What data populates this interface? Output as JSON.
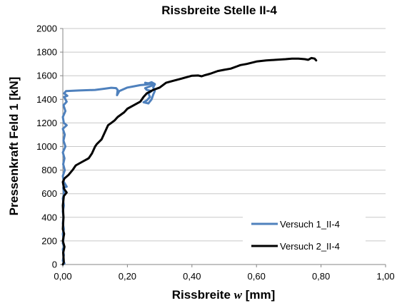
{
  "chart_data": {
    "type": "line",
    "title": "Rissbreite Stelle II-4",
    "xlabel_main": "Rissbreite ",
    "xlabel_italic": "w",
    "xlabel_unit": " [mm]",
    "ylabel": "Pressenkraft Feld 1 [kN]",
    "xlim": [
      0,
      1.0
    ],
    "ylim": [
      0,
      2000
    ],
    "x_ticks": [
      0,
      0.2,
      0.4,
      0.6,
      0.8,
      1.0
    ],
    "x_tick_labels": [
      "0,00",
      "0,20",
      "0,40",
      "0,60",
      "0,80",
      "1,00"
    ],
    "y_ticks": [
      0,
      200,
      400,
      600,
      800,
      1000,
      1200,
      1400,
      1600,
      1800,
      2000
    ],
    "y_tick_labels": [
      "0",
      "200",
      "400",
      "600",
      "800",
      "1000",
      "1200",
      "1400",
      "1600",
      "1800",
      "2000"
    ],
    "grid": "horizontal",
    "legend_position": "bottom-right",
    "series": [
      {
        "name": "Versuch 1_II-4",
        "color": "#4f81bd",
        "points": [
          [
            0.0,
            0
          ],
          [
            0.005,
            10
          ],
          [
            0.0,
            30
          ],
          [
            0.003,
            80
          ],
          [
            0.0,
            130
          ],
          [
            0.004,
            150
          ],
          [
            0.0,
            180
          ],
          [
            0.002,
            220
          ],
          [
            0.0,
            260
          ],
          [
            0.003,
            300
          ],
          [
            0.0,
            350
          ],
          [
            0.002,
            400
          ],
          [
            0.0,
            450
          ],
          [
            0.003,
            500
          ],
          [
            0.0,
            560
          ],
          [
            0.004,
            600
          ],
          [
            0.001,
            650
          ],
          [
            0.012,
            660
          ],
          [
            0.003,
            700
          ],
          [
            0.0,
            750
          ],
          [
            0.006,
            800
          ],
          [
            0.001,
            850
          ],
          [
            0.005,
            900
          ],
          [
            0.0,
            950
          ],
          [
            0.008,
            1000
          ],
          [
            0.002,
            1050
          ],
          [
            0.006,
            1100
          ],
          [
            0.0,
            1150
          ],
          [
            0.012,
            1180
          ],
          [
            0.003,
            1200
          ],
          [
            0.0,
            1250
          ],
          [
            0.008,
            1300
          ],
          [
            0.002,
            1350
          ],
          [
            0.012,
            1380
          ],
          [
            0.004,
            1420
          ],
          [
            0.014,
            1430
          ],
          [
            0.004,
            1450
          ],
          [
            0.01,
            1470
          ],
          [
            0.05,
            1475
          ],
          [
            0.1,
            1480
          ],
          [
            0.13,
            1490
          ],
          [
            0.15,
            1498
          ],
          [
            0.165,
            1495
          ],
          [
            0.17,
            1480
          ],
          [
            0.168,
            1435
          ],
          [
            0.175,
            1470
          ],
          [
            0.2,
            1500
          ],
          [
            0.22,
            1510
          ],
          [
            0.24,
            1520
          ],
          [
            0.26,
            1525
          ],
          [
            0.27,
            1530
          ],
          [
            0.28,
            1535
          ],
          [
            0.285,
            1525
          ],
          [
            0.27,
            1510
          ],
          [
            0.255,
            1495
          ],
          [
            0.26,
            1480
          ],
          [
            0.275,
            1470
          ],
          [
            0.265,
            1450
          ],
          [
            0.27,
            1420
          ],
          [
            0.26,
            1390
          ],
          [
            0.25,
            1375
          ],
          [
            0.265,
            1365
          ],
          [
            0.275,
            1400
          ],
          [
            0.28,
            1440
          ],
          [
            0.285,
            1470
          ],
          [
            0.28,
            1500
          ],
          [
            0.285,
            1530
          ],
          [
            0.275,
            1545
          ],
          [
            0.265,
            1535
          ],
          [
            0.255,
            1540
          ],
          [
            0.28,
            1528
          ]
        ]
      },
      {
        "name": "Versuch 2_II-4",
        "color": "#000000",
        "points": [
          [
            0.0,
            0
          ],
          [
            0.003,
            20
          ],
          [
            0.001,
            100
          ],
          [
            0.005,
            150
          ],
          [
            0.0,
            200
          ],
          [
            0.004,
            260
          ],
          [
            0.0,
            300
          ],
          [
            0.002,
            400
          ],
          [
            0.0,
            500
          ],
          [
            0.003,
            580
          ],
          [
            0.012,
            610
          ],
          [
            0.004,
            640
          ],
          [
            0.0,
            700
          ],
          [
            0.005,
            730
          ],
          [
            0.018,
            760
          ],
          [
            0.03,
            800
          ],
          [
            0.04,
            840
          ],
          [
            0.06,
            870
          ],
          [
            0.08,
            900
          ],
          [
            0.09,
            940
          ],
          [
            0.1,
            1000
          ],
          [
            0.105,
            1020
          ],
          [
            0.12,
            1060
          ],
          [
            0.13,
            1120
          ],
          [
            0.14,
            1180
          ],
          [
            0.15,
            1200
          ],
          [
            0.16,
            1220
          ],
          [
            0.17,
            1250
          ],
          [
            0.19,
            1290
          ],
          [
            0.2,
            1320
          ],
          [
            0.22,
            1350
          ],
          [
            0.24,
            1380
          ],
          [
            0.25,
            1420
          ],
          [
            0.26,
            1450
          ],
          [
            0.28,
            1480
          ],
          [
            0.3,
            1500
          ],
          [
            0.31,
            1520
          ],
          [
            0.32,
            1540
          ],
          [
            0.34,
            1555
          ],
          [
            0.36,
            1570
          ],
          [
            0.38,
            1585
          ],
          [
            0.4,
            1600
          ],
          [
            0.42,
            1602
          ],
          [
            0.43,
            1595
          ],
          [
            0.44,
            1605
          ],
          [
            0.46,
            1620
          ],
          [
            0.48,
            1640
          ],
          [
            0.5,
            1650
          ],
          [
            0.52,
            1660
          ],
          [
            0.54,
            1680
          ],
          [
            0.55,
            1690
          ],
          [
            0.57,
            1700
          ],
          [
            0.6,
            1720
          ],
          [
            0.63,
            1730
          ],
          [
            0.66,
            1735
          ],
          [
            0.69,
            1740
          ],
          [
            0.71,
            1745
          ],
          [
            0.73,
            1745
          ],
          [
            0.75,
            1740
          ],
          [
            0.76,
            1735
          ],
          [
            0.77,
            1750
          ],
          [
            0.78,
            1745
          ],
          [
            0.785,
            1730
          ]
        ]
      }
    ]
  }
}
